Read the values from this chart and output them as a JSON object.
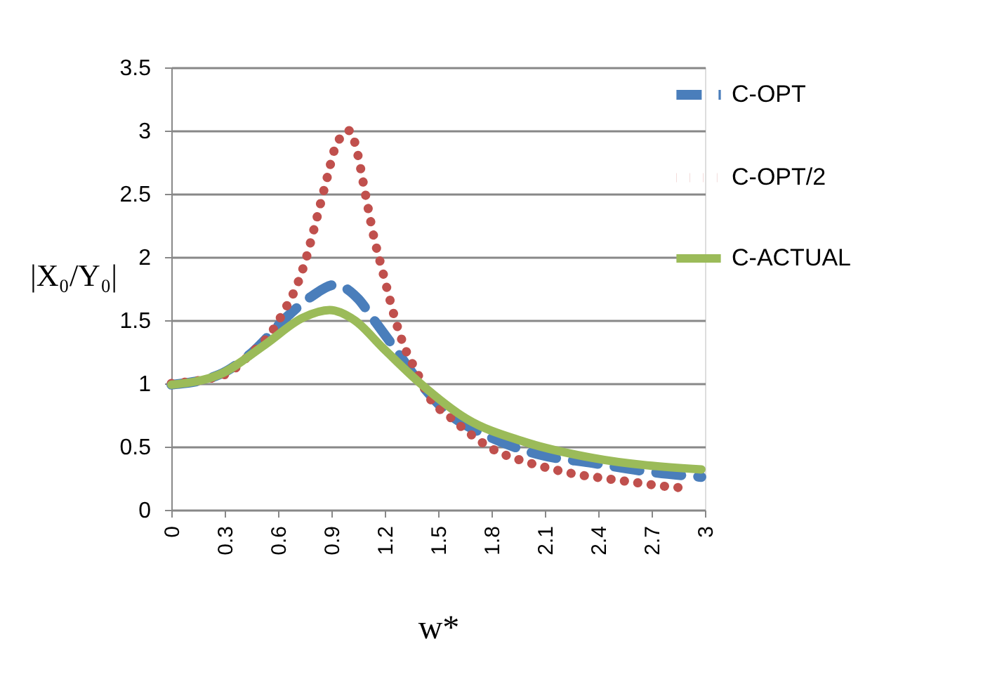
{
  "chart_data": {
    "type": "line",
    "ylabel": "|X₀/Y₀|",
    "xlabel": "w*",
    "xlim": [
      0,
      3
    ],
    "xticks": [
      0,
      0.3,
      0.6,
      0.9,
      1.2,
      1.5,
      1.8,
      2.1,
      2.4,
      2.7,
      3
    ],
    "ylim": [
      0,
      3.5
    ],
    "yticks": [
      0,
      0.5,
      1,
      1.5,
      2,
      2.5,
      3,
      3.5
    ],
    "grid": "y",
    "legend": "right",
    "series": [
      {
        "name": "C-OPT",
        "color": "#4a7ebb",
        "line_style": "dashed",
        "x": [
          0,
          0.27,
          0.45,
          0.66,
          0.79,
          0.92,
          1.05,
          1.14,
          1.24,
          1.4,
          1.56,
          1.77,
          2.06,
          2.37,
          2.69,
          2.98
        ],
        "values": [
          0.99,
          1.07,
          1.24,
          1.54,
          1.69,
          1.78,
          1.67,
          1.5,
          1.31,
          1.0,
          0.76,
          0.59,
          0.44,
          0.37,
          0.3,
          0.26
        ]
      },
      {
        "name": "C-OPT/2",
        "color": "#c0504d",
        "line_style": "dotted",
        "x": [
          0,
          0.3,
          0.45,
          0.56,
          0.64,
          0.71,
          0.76,
          0.8,
          0.84,
          0.88,
          0.92,
          1.0,
          1.05,
          1.08,
          1.11,
          1.14,
          1.18,
          1.22,
          1.26,
          1.31,
          1.38,
          1.45,
          1.57,
          1.69,
          1.82,
          1.97,
          2.12,
          2.28,
          2.43,
          2.59,
          2.75,
          2.91
        ],
        "values": [
          1.0,
          1.07,
          1.24,
          1.4,
          1.59,
          1.79,
          2.0,
          2.21,
          2.43,
          2.65,
          2.86,
          3.0,
          2.8,
          2.58,
          2.36,
          2.15,
          1.93,
          1.71,
          1.5,
          1.29,
          1.09,
          0.89,
          0.73,
          0.59,
          0.47,
          0.39,
          0.33,
          0.28,
          0.25,
          0.22,
          0.19,
          0.17
        ]
      },
      {
        "name": "C-ACTUAL",
        "color": "#9bbb59",
        "line_style": "solid",
        "x": [
          0,
          0.27,
          0.53,
          0.74,
          0.89,
          1.03,
          1.19,
          1.4,
          1.66,
          1.98,
          2.37,
          2.98
        ],
        "values": [
          0.99,
          1.07,
          1.31,
          1.52,
          1.58,
          1.5,
          1.28,
          1.0,
          0.72,
          0.54,
          0.41,
          0.32
        ]
      }
    ]
  }
}
